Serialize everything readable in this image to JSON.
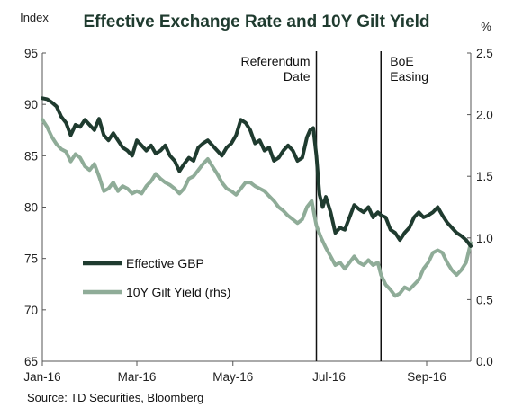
{
  "chart_data": {
    "type": "line",
    "title": "Effective Exchange Rate and 10Y Gilt Yield",
    "y_left_unit": "Index",
    "y_right_unit": "%",
    "x_tick_labels": [
      "Jan-16",
      "Mar-16",
      "May-16",
      "Jul-16",
      "Sep-16"
    ],
    "x_tick_day_index": [
      0,
      60,
      121,
      182,
      244
    ],
    "x_range_day_index": [
      0,
      272
    ],
    "y_left_ticks": [
      "65",
      "70",
      "75",
      "80",
      "85",
      "90",
      "95"
    ],
    "y_left_range": [
      65,
      95
    ],
    "y_right_ticks": [
      "0.0",
      "0.5",
      "1.0",
      "1.5",
      "2.0",
      "2.5"
    ],
    "y_right_range": [
      0,
      2.5
    ],
    "annotations": [
      {
        "lines": [
          "Referendum",
          "Date"
        ],
        "day_index": 174
      },
      {
        "lines": [
          "BoE",
          "Easing"
        ],
        "day_index": 215
      }
    ],
    "series": [
      {
        "name": "Effective GBP",
        "axis": "left",
        "color": "#1f3b2f",
        "points": [
          [
            0,
            90.6
          ],
          [
            3,
            90.5
          ],
          [
            6,
            90.2
          ],
          [
            9,
            89.8
          ],
          [
            12,
            88.8
          ],
          [
            15,
            88.2
          ],
          [
            18,
            87.0
          ],
          [
            21,
            88.0
          ],
          [
            24,
            87.8
          ],
          [
            27,
            88.5
          ],
          [
            30,
            88.0
          ],
          [
            33,
            87.5
          ],
          [
            36,
            88.6
          ],
          [
            39,
            87.0
          ],
          [
            42,
            86.5
          ],
          [
            45,
            87.2
          ],
          [
            48,
            86.5
          ],
          [
            51,
            85.8
          ],
          [
            54,
            85.5
          ],
          [
            57,
            85.0
          ],
          [
            60,
            86.5
          ],
          [
            63,
            86.0
          ],
          [
            66,
            85.5
          ],
          [
            69,
            86.0
          ],
          [
            72,
            85.2
          ],
          [
            75,
            85.5
          ],
          [
            78,
            86.0
          ],
          [
            81,
            85.0
          ],
          [
            84,
            84.5
          ],
          [
            87,
            83.5
          ],
          [
            90,
            84.2
          ],
          [
            93,
            84.8
          ],
          [
            96,
            84.5
          ],
          [
            99,
            85.8
          ],
          [
            102,
            86.2
          ],
          [
            105,
            86.5
          ],
          [
            108,
            86.0
          ],
          [
            111,
            85.5
          ],
          [
            114,
            85.0
          ],
          [
            117,
            85.8
          ],
          [
            120,
            86.2
          ],
          [
            123,
            87.0
          ],
          [
            126,
            88.5
          ],
          [
            129,
            88.2
          ],
          [
            132,
            87.5
          ],
          [
            135,
            86.2
          ],
          [
            138,
            86.5
          ],
          [
            141,
            85.5
          ],
          [
            144,
            85.8
          ],
          [
            147,
            84.5
          ],
          [
            150,
            84.8
          ],
          [
            153,
            85.5
          ],
          [
            156,
            86.0
          ],
          [
            159,
            85.5
          ],
          [
            162,
            84.5
          ],
          [
            165,
            84.8
          ],
          [
            168,
            86.8
          ],
          [
            170,
            87.5
          ],
          [
            172,
            87.7
          ],
          [
            174,
            85.0
          ],
          [
            175,
            83.0
          ],
          [
            176,
            81.2
          ],
          [
            178,
            80.0
          ],
          [
            180,
            81.0
          ],
          [
            183,
            79.5
          ],
          [
            186,
            77.5
          ],
          [
            189,
            78.0
          ],
          [
            192,
            77.8
          ],
          [
            195,
            79.0
          ],
          [
            198,
            80.2
          ],
          [
            201,
            79.8
          ],
          [
            204,
            79.5
          ],
          [
            207,
            80.0
          ],
          [
            210,
            79.0
          ],
          [
            213,
            79.5
          ],
          [
            215,
            79.2
          ],
          [
            218,
            79.0
          ],
          [
            221,
            77.8
          ],
          [
            224,
            77.5
          ],
          [
            227,
            76.8
          ],
          [
            230,
            77.5
          ],
          [
            233,
            78.0
          ],
          [
            236,
            79.0
          ],
          [
            239,
            79.5
          ],
          [
            242,
            79.0
          ],
          [
            245,
            79.2
          ],
          [
            248,
            79.5
          ],
          [
            251,
            80.0
          ],
          [
            254,
            79.2
          ],
          [
            257,
            78.5
          ],
          [
            260,
            78.0
          ],
          [
            263,
            77.5
          ],
          [
            266,
            77.2
          ],
          [
            269,
            76.8
          ],
          [
            272,
            76.2
          ]
        ]
      },
      {
        "name": "10Y Gilt Yield (rhs)",
        "axis": "right",
        "color": "#8fac98",
        "points": [
          [
            0,
            1.96
          ],
          [
            3,
            1.9
          ],
          [
            6,
            1.82
          ],
          [
            9,
            1.76
          ],
          [
            12,
            1.72
          ],
          [
            15,
            1.7
          ],
          [
            18,
            1.62
          ],
          [
            21,
            1.68
          ],
          [
            24,
            1.65
          ],
          [
            27,
            1.58
          ],
          [
            30,
            1.55
          ],
          [
            33,
            1.6
          ],
          [
            36,
            1.5
          ],
          [
            39,
            1.38
          ],
          [
            42,
            1.4
          ],
          [
            45,
            1.45
          ],
          [
            48,
            1.38
          ],
          [
            51,
            1.42
          ],
          [
            54,
            1.4
          ],
          [
            57,
            1.36
          ],
          [
            60,
            1.38
          ],
          [
            63,
            1.36
          ],
          [
            66,
            1.42
          ],
          [
            69,
            1.46
          ],
          [
            72,
            1.52
          ],
          [
            75,
            1.48
          ],
          [
            78,
            1.45
          ],
          [
            81,
            1.43
          ],
          [
            84,
            1.4
          ],
          [
            87,
            1.36
          ],
          [
            90,
            1.4
          ],
          [
            93,
            1.48
          ],
          [
            96,
            1.5
          ],
          [
            99,
            1.55
          ],
          [
            102,
            1.6
          ],
          [
            105,
            1.64
          ],
          [
            108,
            1.58
          ],
          [
            111,
            1.52
          ],
          [
            114,
            1.45
          ],
          [
            117,
            1.4
          ],
          [
            120,
            1.38
          ],
          [
            123,
            1.35
          ],
          [
            126,
            1.4
          ],
          [
            129,
            1.45
          ],
          [
            132,
            1.45
          ],
          [
            135,
            1.42
          ],
          [
            138,
            1.4
          ],
          [
            141,
            1.38
          ],
          [
            144,
            1.34
          ],
          [
            147,
            1.3
          ],
          [
            150,
            1.25
          ],
          [
            153,
            1.22
          ],
          [
            156,
            1.18
          ],
          [
            159,
            1.15
          ],
          [
            162,
            1.12
          ],
          [
            165,
            1.15
          ],
          [
            168,
            1.25
          ],
          [
            171,
            1.3
          ],
          [
            174,
            1.1
          ],
          [
            177,
            1.0
          ],
          [
            180,
            0.92
          ],
          [
            183,
            0.85
          ],
          [
            186,
            0.78
          ],
          [
            189,
            0.8
          ],
          [
            192,
            0.75
          ],
          [
            195,
            0.8
          ],
          [
            198,
            0.85
          ],
          [
            201,
            0.8
          ],
          [
            204,
            0.78
          ],
          [
            207,
            0.82
          ],
          [
            210,
            0.78
          ],
          [
            213,
            0.8
          ],
          [
            215,
            0.7
          ],
          [
            218,
            0.62
          ],
          [
            221,
            0.58
          ],
          [
            224,
            0.53
          ],
          [
            227,
            0.55
          ],
          [
            230,
            0.6
          ],
          [
            233,
            0.58
          ],
          [
            236,
            0.62
          ],
          [
            239,
            0.66
          ],
          [
            242,
            0.75
          ],
          [
            245,
            0.8
          ],
          [
            248,
            0.88
          ],
          [
            251,
            0.9
          ],
          [
            254,
            0.88
          ],
          [
            257,
            0.8
          ],
          [
            260,
            0.74
          ],
          [
            263,
            0.7
          ],
          [
            266,
            0.74
          ],
          [
            269,
            0.8
          ],
          [
            272,
            0.96
          ]
        ]
      }
    ],
    "legend_placement": "lower-left",
    "grid": false
  },
  "source": "Source: TD Securities, Bloomberg"
}
